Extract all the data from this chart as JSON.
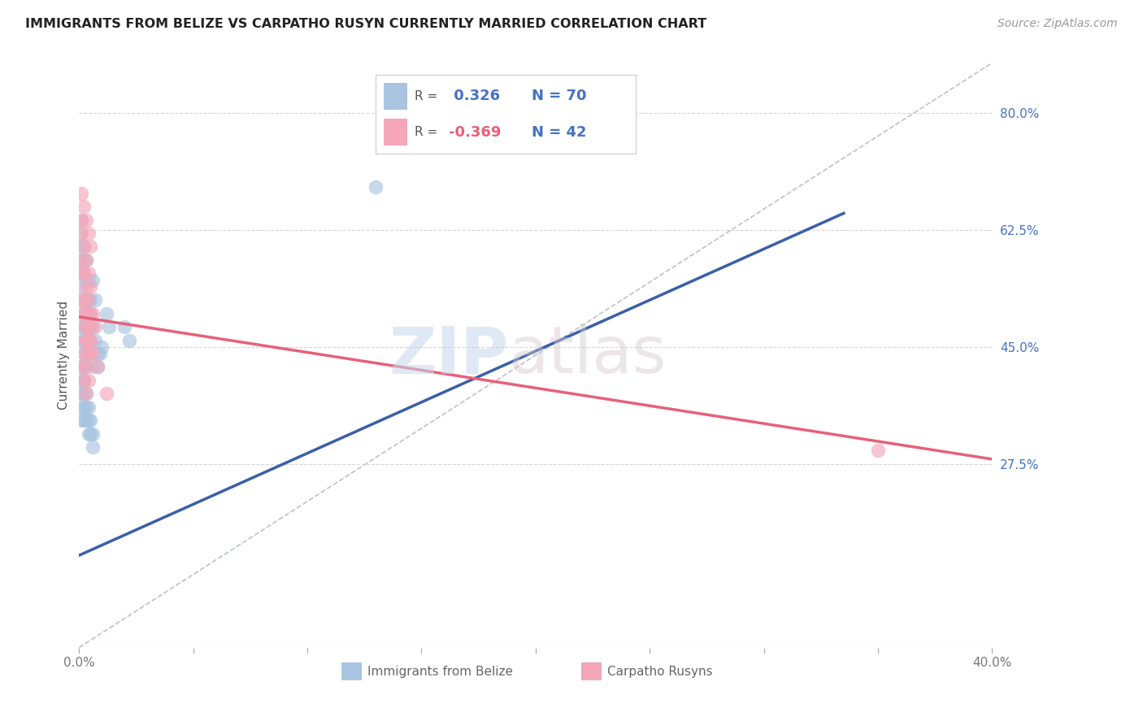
{
  "title": "IMMIGRANTS FROM BELIZE VS CARPATHO RUSYN CURRENTLY MARRIED CORRELATION CHART",
  "source": "Source: ZipAtlas.com",
  "xlabel_belize": "Immigrants from Belize",
  "xlabel_rusyn": "Carpatho Rusyns",
  "ylabel": "Currently Married",
  "xlim": [
    0.0,
    0.4
  ],
  "ylim": [
    0.0,
    0.875
  ],
  "xticks": [
    0.0,
    0.05,
    0.1,
    0.15,
    0.2,
    0.25,
    0.3,
    0.35,
    0.4
  ],
  "ytick_labels_right": [
    "27.5%",
    "45.0%",
    "62.5%",
    "80.0%"
  ],
  "ytick_vals_right": [
    0.275,
    0.45,
    0.625,
    0.8
  ],
  "r_belize": 0.326,
  "n_belize": 70,
  "r_rusyn": -0.369,
  "n_rusyn": 42,
  "color_belize": "#a8c4e0",
  "color_rusyn": "#f4a7b9",
  "color_belize_line": "#3a5fa8",
  "color_rusyn_line": "#e8607a",
  "color_r_belize": "#4472c4",
  "color_r_rusyn": "#e8607a",
  "color_n": "#4472c4",
  "watermark_zip": "ZIP",
  "watermark_atlas": "atlas",
  "belize_x": [
    0.001,
    0.001,
    0.001,
    0.001,
    0.001,
    0.001,
    0.001,
    0.001,
    0.001,
    0.001,
    0.002,
    0.002,
    0.002,
    0.002,
    0.002,
    0.002,
    0.002,
    0.002,
    0.002,
    0.003,
    0.003,
    0.003,
    0.003,
    0.003,
    0.003,
    0.003,
    0.003,
    0.004,
    0.004,
    0.004,
    0.004,
    0.004,
    0.004,
    0.005,
    0.005,
    0.005,
    0.005,
    0.006,
    0.006,
    0.006,
    0.007,
    0.007,
    0.008,
    0.008,
    0.009,
    0.01,
    0.012,
    0.013,
    0.02,
    0.022,
    0.001,
    0.001,
    0.001,
    0.001,
    0.001,
    0.002,
    0.002,
    0.002,
    0.002,
    0.003,
    0.003,
    0.003,
    0.004,
    0.004,
    0.004,
    0.005,
    0.005,
    0.006,
    0.006,
    0.13
  ],
  "belize_y": [
    0.6,
    0.62,
    0.58,
    0.64,
    0.56,
    0.54,
    0.52,
    0.48,
    0.46,
    0.5,
    0.6,
    0.58,
    0.56,
    0.5,
    0.48,
    0.46,
    0.44,
    0.42,
    0.4,
    0.58,
    0.55,
    0.52,
    0.5,
    0.48,
    0.46,
    0.44,
    0.42,
    0.55,
    0.52,
    0.5,
    0.48,
    0.46,
    0.44,
    0.52,
    0.5,
    0.48,
    0.46,
    0.55,
    0.48,
    0.42,
    0.52,
    0.46,
    0.44,
    0.42,
    0.44,
    0.45,
    0.5,
    0.48,
    0.48,
    0.46,
    0.42,
    0.4,
    0.38,
    0.36,
    0.34,
    0.4,
    0.38,
    0.36,
    0.34,
    0.38,
    0.36,
    0.34,
    0.36,
    0.34,
    0.32,
    0.34,
    0.32,
    0.32,
    0.3,
    0.69
  ],
  "rusyn_x": [
    0.001,
    0.001,
    0.001,
    0.001,
    0.001,
    0.002,
    0.002,
    0.002,
    0.002,
    0.002,
    0.003,
    0.003,
    0.003,
    0.003,
    0.004,
    0.004,
    0.004,
    0.004,
    0.005,
    0.005,
    0.005,
    0.006,
    0.006,
    0.007,
    0.008,
    0.001,
    0.002,
    0.003,
    0.004,
    0.005,
    0.001,
    0.002,
    0.003,
    0.002,
    0.003,
    0.004,
    0.003,
    0.004,
    0.004,
    0.005,
    0.012,
    0.35
  ],
  "rusyn_y": [
    0.64,
    0.62,
    0.58,
    0.56,
    0.52,
    0.6,
    0.56,
    0.52,
    0.5,
    0.48,
    0.58,
    0.54,
    0.5,
    0.46,
    0.56,
    0.52,
    0.48,
    0.44,
    0.54,
    0.5,
    0.46,
    0.5,
    0.44,
    0.48,
    0.42,
    0.68,
    0.66,
    0.64,
    0.62,
    0.6,
    0.42,
    0.4,
    0.38,
    0.44,
    0.42,
    0.4,
    0.46,
    0.44,
    0.48,
    0.46,
    0.38,
    0.295
  ],
  "belize_line": [
    [
      0.0,
      0.138
    ],
    [
      0.335,
      0.145,
      0.335,
      0.65
    ]
  ],
  "belize_line_x": [
    0.0,
    0.335
  ],
  "belize_line_y": [
    0.138,
    0.65
  ],
  "rusyn_line_x": [
    0.0,
    0.4
  ],
  "rusyn_line_y": [
    0.495,
    0.282
  ],
  "diag_line_x": [
    0.0,
    0.4
  ],
  "diag_line_y": [
    0.0,
    0.875
  ],
  "grid_color": "#d5d5d5",
  "background_color": "#ffffff",
  "tick_color": "#777777"
}
